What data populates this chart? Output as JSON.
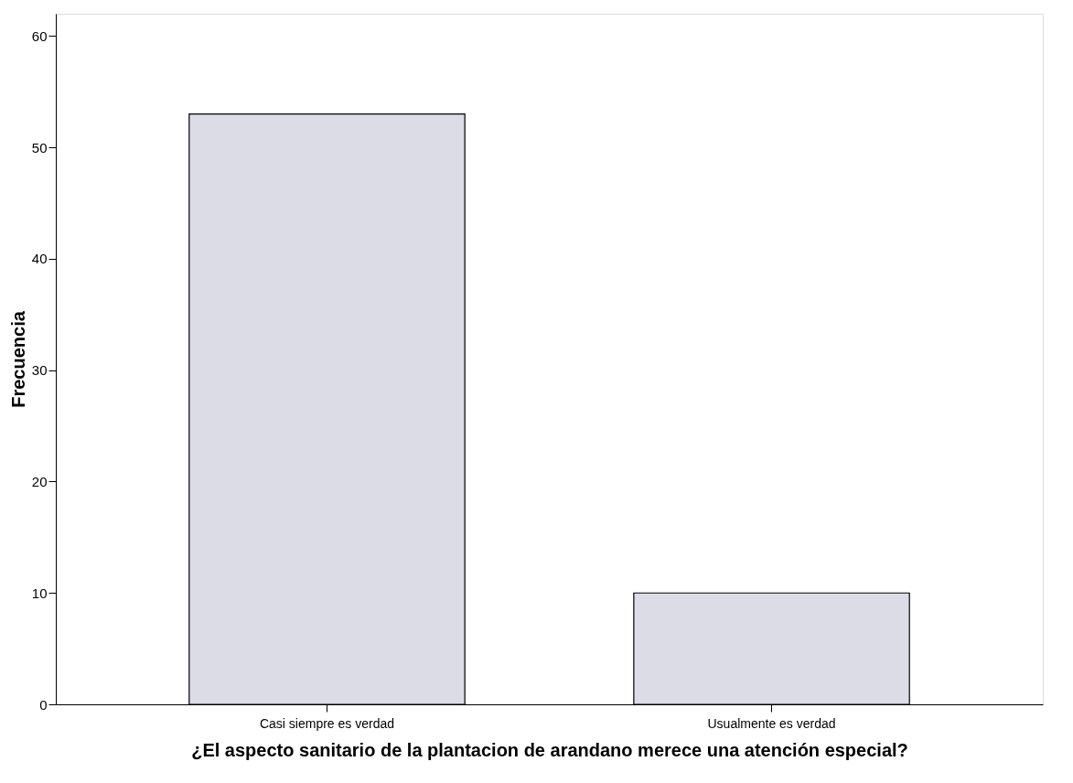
{
  "chart_data": {
    "type": "bar",
    "xlabel": "¿El aspecto sanitario de la plantacion de arandano merece una atención especial?",
    "ylabel": "Frecuencia",
    "categories": [
      "Casi siempre es verdad",
      "Usualmente es verdad"
    ],
    "values": [
      53,
      10
    ],
    "color": "#dcdce6",
    "ylim": [
      0,
      62
    ],
    "yticks": [
      0,
      10,
      20,
      30,
      40,
      50,
      60
    ],
    "grid": false
  }
}
